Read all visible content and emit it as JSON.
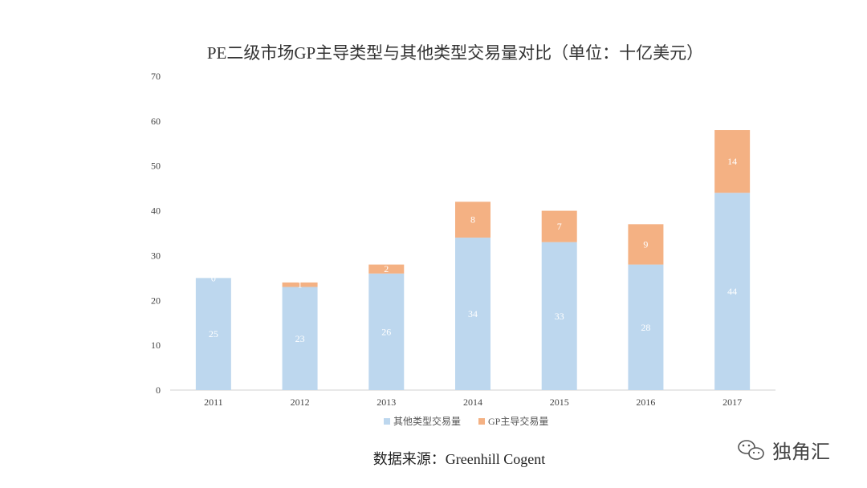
{
  "chart_data": {
    "type": "bar",
    "stacked": true,
    "title": "PE二级市场GP主导类型与其他类型交易量对比（单位：十亿美元）",
    "categories": [
      "2011",
      "2012",
      "2013",
      "2014",
      "2015",
      "2016",
      "2017"
    ],
    "series": [
      {
        "name": "其他类型交易量",
        "values": [
          25,
          23,
          26,
          34,
          33,
          28,
          44
        ],
        "color": "#BDD7EE"
      },
      {
        "name": "GP主导交易量",
        "values": [
          0,
          1,
          2,
          8,
          7,
          9,
          14
        ],
        "color": "#F4B183"
      }
    ],
    "ylim": [
      0,
      70
    ],
    "yticks": [
      0,
      10,
      20,
      30,
      40,
      50,
      60,
      70
    ],
    "grid": false,
    "legend": "bottom"
  },
  "source": "数据来源：Greenhill Cogent",
  "watermark": {
    "text": "独角汇",
    "icon": "wechat-icon"
  }
}
